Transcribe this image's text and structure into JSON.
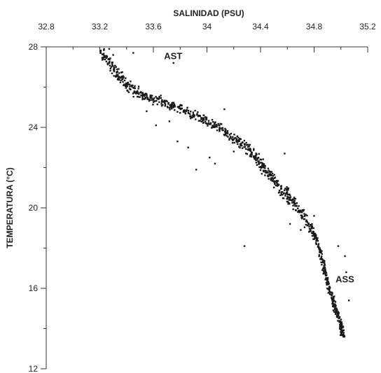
{
  "chart_data": {
    "type": "scatter",
    "title": "",
    "xlabel": "SALINIDAD (PSU)",
    "ylabel": "TEMPERATURA (°C)",
    "x_axis_position": "top",
    "xlim": [
      32.8,
      35.2
    ],
    "ylim": [
      12,
      28
    ],
    "x_ticks": [
      32.8,
      33.2,
      33.6,
      34,
      34.4,
      34.8,
      35.2
    ],
    "x_tick_labels": [
      "32.8",
      "33.2",
      "33.6",
      "34",
      "34.4",
      "34.8",
      "35.2"
    ],
    "y_ticks": [
      12,
      16,
      20,
      24,
      28
    ],
    "y_tick_labels": [
      "12",
      "16",
      "20",
      "24",
      "28"
    ],
    "grid": false,
    "legend": "none",
    "point_color": "#1a1a1a",
    "annotations": [
      {
        "text": "AST",
        "x": 33.68,
        "y": 27.4
      },
      {
        "text": "ASS",
        "x": 34.96,
        "y": 16.3
      }
    ],
    "envelope": [
      {
        "x": 33.22,
        "y": 27.7
      },
      {
        "x": 33.32,
        "y": 26.7
      },
      {
        "x": 33.42,
        "y": 26.0
      },
      {
        "x": 33.55,
        "y": 25.5
      },
      {
        "x": 33.7,
        "y": 25.2
      },
      {
        "x": 33.85,
        "y": 24.8
      },
      {
        "x": 34.0,
        "y": 24.3
      },
      {
        "x": 34.15,
        "y": 23.7
      },
      {
        "x": 34.3,
        "y": 23.0
      },
      {
        "x": 34.4,
        "y": 22.2
      },
      {
        "x": 34.5,
        "y": 21.4
      },
      {
        "x": 34.6,
        "y": 20.6
      },
      {
        "x": 34.7,
        "y": 19.8
      },
      {
        "x": 34.8,
        "y": 18.7
      },
      {
        "x": 34.86,
        "y": 17.5
      },
      {
        "x": 34.9,
        "y": 16.3
      },
      {
        "x": 34.95,
        "y": 15.2
      },
      {
        "x": 35.0,
        "y": 14.2
      },
      {
        "x": 35.02,
        "y": 13.7
      }
    ],
    "outliers": [
      {
        "x": 33.27,
        "y": 27.9
      },
      {
        "x": 33.3,
        "y": 27.6
      },
      {
        "x": 33.45,
        "y": 27.7
      },
      {
        "x": 33.75,
        "y": 27.2
      },
      {
        "x": 33.92,
        "y": 21.9
      },
      {
        "x": 33.78,
        "y": 23.3
      },
      {
        "x": 33.86,
        "y": 23.0
      },
      {
        "x": 34.02,
        "y": 22.5
      },
      {
        "x": 34.06,
        "y": 22.2
      },
      {
        "x": 34.13,
        "y": 24.9
      },
      {
        "x": 34.2,
        "y": 22.8
      },
      {
        "x": 34.28,
        "y": 18.1
      },
      {
        "x": 34.58,
        "y": 22.7
      },
      {
        "x": 34.62,
        "y": 19.2
      },
      {
        "x": 34.7,
        "y": 18.9
      },
      {
        "x": 34.8,
        "y": 19.6
      },
      {
        "x": 35.03,
        "y": 17.6
      },
      {
        "x": 35.04,
        "y": 16.8
      },
      {
        "x": 35.06,
        "y": 15.4
      },
      {
        "x": 34.98,
        "y": 18.1
      },
      {
        "x": 33.55,
        "y": 24.8
      },
      {
        "x": 33.62,
        "y": 24.1
      },
      {
        "x": 33.72,
        "y": 24.3
      }
    ]
  }
}
